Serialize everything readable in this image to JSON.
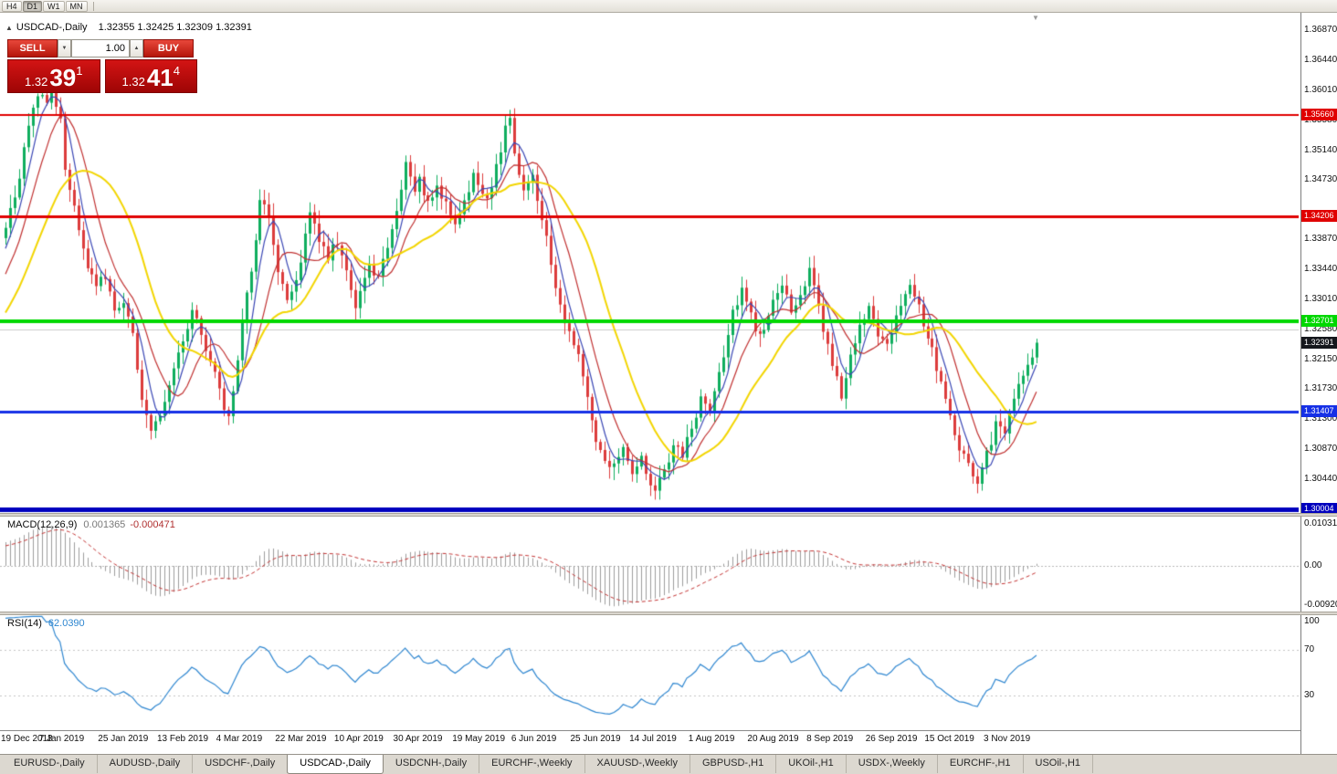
{
  "icons": {
    "collapse_panel": "▲",
    "shift_marker": "▼",
    "spin_down": "▼",
    "spin_up": "▲"
  },
  "toolbar": {
    "timeframes": [
      {
        "label": "H4",
        "active": false
      },
      {
        "label": "D1",
        "active": true
      },
      {
        "label": "W1",
        "active": false
      },
      {
        "label": "MN",
        "active": false
      }
    ]
  },
  "chart_header": {
    "symbol_title": "USDCAD-,Daily",
    "ohlc_text": "1.32355 1.32425 1.32309 1.32391"
  },
  "trade_panel": {
    "sell_label": "SELL",
    "buy_label": "BUY",
    "volume": "1.00",
    "sell_price": {
      "base": "1.32",
      "pips": "39",
      "pt": "1"
    },
    "buy_price": {
      "base": "1.32",
      "pips": "41",
      "pt": "4"
    }
  },
  "chart_data": {
    "type": "candlestick",
    "symbol": "USDCAD-",
    "timeframe": "Daily",
    "title": "USDCAD-,Daily",
    "ohlc_readout": {
      "open": 1.32355,
      "high": 1.32425,
      "low": 1.32309,
      "close": 1.32391
    },
    "price_ticks": [
      "1.36870",
      "1.36440",
      "1.36010",
      "1.35580",
      "1.35140",
      "1.34730",
      "1.33870",
      "1.33440",
      "1.33010",
      "1.32580",
      "1.32150",
      "1.31730",
      "1.31300",
      "1.30870",
      "1.30440"
    ],
    "x_labels": [
      "19 Dec 2018",
      "7 Jan 2019",
      "25 Jan 2019",
      "13 Feb 2019",
      "4 Mar 2019",
      "22 Mar 2019",
      "10 Apr 2019",
      "30 Apr 2019",
      "19 May 2019",
      "6 Jun 2019",
      "25 Jun 2019",
      "14 Jul 2019",
      "1 Aug 2019",
      "20 Aug 2019",
      "8 Sep 2019",
      "26 Sep 2019",
      "15 Oct 2019",
      "3 Nov 2019"
    ],
    "candles_per_label": 13,
    "hlines": [
      {
        "price": 1.3566,
        "label": "1.35660",
        "color": "#e00000",
        "width": 2
      },
      {
        "price": 1.34206,
        "label": "1.34206",
        "color": "#e00000",
        "width": 3
      },
      {
        "price": 1.32701,
        "label": "1.32701",
        "color": "#00d800",
        "width": 4
      },
      {
        "price": 1.31407,
        "label": "1.31407",
        "color": "#1630e6",
        "width": 3
      },
      {
        "price": 1.30004,
        "label": "1.30004",
        "color": "#0000be",
        "width": 5
      }
    ],
    "current_price": {
      "value": 1.32391,
      "label": "1.32391",
      "color": "#15171c"
    },
    "gridline_price": 1.3258,
    "candle_colors": {
      "up": "#0fae5e",
      "down": "#dc3c3c"
    },
    "moving_averages": [
      {
        "period": 5,
        "color": "#3946b4",
        "width": 1.2
      },
      {
        "period": 10,
        "color": "#c03030",
        "width": 1.2
      },
      {
        "period": 21,
        "color": "#f2d500",
        "width": 2
      }
    ],
    "prehistory": [
      [
        -40,
        1.3085
      ],
      [
        -32,
        1.3125
      ],
      [
        -24,
        1.3165
      ],
      [
        -16,
        1.322
      ],
      [
        -10,
        1.328
      ],
      [
        -6,
        1.331
      ],
      [
        -1,
        1.339
      ]
    ],
    "waypoints": [
      [
        0,
        1.3405
      ],
      [
        2,
        1.3445
      ],
      [
        4,
        1.3515
      ],
      [
        6,
        1.357
      ],
      [
        8,
        1.36
      ],
      [
        9,
        1.3575
      ],
      [
        10,
        1.3608
      ],
      [
        12,
        1.3555
      ],
      [
        13,
        1.349
      ],
      [
        14,
        1.3455
      ],
      [
        16,
        1.3405
      ],
      [
        18,
        1.335
      ],
      [
        20,
        1.332
      ],
      [
        22,
        1.3335
      ],
      [
        24,
        1.329
      ],
      [
        26,
        1.33
      ],
      [
        28,
        1.325
      ],
      [
        30,
        1.3155
      ],
      [
        32,
        1.3108
      ],
      [
        34,
        1.313
      ],
      [
        36,
        1.3175
      ],
      [
        38,
        1.322
      ],
      [
        39,
        1.324
      ],
      [
        41,
        1.329
      ],
      [
        43,
        1.325
      ],
      [
        45,
        1.3215
      ],
      [
        47,
        1.317
      ],
      [
        49,
        1.313
      ],
      [
        51,
        1.321
      ],
      [
        52,
        1.327
      ],
      [
        54,
        1.334
      ],
      [
        56,
        1.3445
      ],
      [
        58,
        1.342
      ],
      [
        60,
        1.3345
      ],
      [
        62,
        1.3295
      ],
      [
        64,
        1.333
      ],
      [
        65,
        1.336
      ],
      [
        67,
        1.342
      ],
      [
        69,
        1.339
      ],
      [
        71,
        1.336
      ],
      [
        73,
        1.3385
      ],
      [
        75,
        1.334
      ],
      [
        77,
        1.329
      ],
      [
        78,
        1.332
      ],
      [
        80,
        1.3355
      ],
      [
        82,
        1.333
      ],
      [
        84,
        1.338
      ],
      [
        86,
        1.342
      ],
      [
        88,
        1.3505
      ],
      [
        90,
        1.346
      ],
      [
        91,
        1.3475
      ],
      [
        93,
        1.344
      ],
      [
        95,
        1.3465
      ],
      [
        97,
        1.3435
      ],
      [
        99,
        1.3415
      ],
      [
        101,
        1.3445
      ],
      [
        103,
        1.3475
      ],
      [
        104,
        1.3465
      ],
      [
        106,
        1.3445
      ],
      [
        108,
        1.349
      ],
      [
        110,
        1.3545
      ],
      [
        111,
        1.356
      ],
      [
        112,
        1.351
      ],
      [
        114,
        1.3465
      ],
      [
        116,
        1.348
      ],
      [
        117,
        1.345
      ],
      [
        119,
        1.339
      ],
      [
        121,
        1.332
      ],
      [
        123,
        1.327
      ],
      [
        125,
        1.324
      ],
      [
        127,
        1.319
      ],
      [
        129,
        1.313
      ],
      [
        130,
        1.31
      ],
      [
        132,
        1.3075
      ],
      [
        134,
        1.306
      ],
      [
        136,
        1.309
      ],
      [
        138,
        1.3055
      ],
      [
        140,
        1.307
      ],
      [
        142,
        1.3035
      ],
      [
        143,
        1.302
      ],
      [
        145,
        1.3055
      ],
      [
        147,
        1.3095
      ],
      [
        149,
        1.3075
      ],
      [
        151,
        1.312
      ],
      [
        153,
        1.3155
      ],
      [
        155,
        1.314
      ],
      [
        156,
        1.3165
      ],
      [
        158,
        1.322
      ],
      [
        160,
        1.328
      ],
      [
        162,
        1.332
      ],
      [
        164,
        1.3275
      ],
      [
        166,
        1.3245
      ],
      [
        168,
        1.3275
      ],
      [
        169,
        1.33
      ],
      [
        171,
        1.332
      ],
      [
        173,
        1.3285
      ],
      [
        175,
        1.331
      ],
      [
        177,
        1.334
      ],
      [
        179,
        1.329
      ],
      [
        181,
        1.3235
      ],
      [
        182,
        1.321
      ],
      [
        184,
        1.3165
      ],
      [
        186,
        1.3215
      ],
      [
        188,
        1.326
      ],
      [
        190,
        1.329
      ],
      [
        192,
        1.3255
      ],
      [
        194,
        1.324
      ],
      [
        195,
        1.326
      ],
      [
        197,
        1.329
      ],
      [
        199,
        1.332
      ],
      [
        201,
        1.329
      ],
      [
        203,
        1.325
      ],
      [
        205,
        1.3205
      ],
      [
        207,
        1.3165
      ],
      [
        208,
        1.313
      ],
      [
        210,
        1.309
      ],
      [
        212,
        1.306
      ],
      [
        214,
        1.3042
      ],
      [
        216,
        1.308
      ],
      [
        218,
        1.312
      ],
      [
        220,
        1.3105
      ],
      [
        221,
        1.314
      ],
      [
        223,
        1.3175
      ],
      [
        225,
        1.3205
      ],
      [
        226,
        1.3222
      ],
      [
        227,
        1.3239
      ]
    ],
    "macd": {
      "name": "MACD(12,26,9)",
      "value_main": "0.001365",
      "value_signal": "-0.000471",
      "scale_top": "0.010311",
      "scale_zero": "0.00",
      "scale_bottom": "-0.009203",
      "fast": 12,
      "slow": 26,
      "signal": 9,
      "hist_color": "#9c9c9c",
      "signal_color": "#c23232"
    },
    "rsi": {
      "name": "RSI(14)",
      "value": "62.0390",
      "period": 14,
      "levels": [
        70,
        30
      ],
      "scale_labels": [
        "100",
        "70",
        "30"
      ],
      "color": "#2e86d0"
    }
  },
  "tabs": [
    {
      "label": "EURUSD-,Daily",
      "active": false
    },
    {
      "label": "AUDUSD-,Daily",
      "active": false
    },
    {
      "label": "USDCHF-,Daily",
      "active": false
    },
    {
      "label": "USDCAD-,Daily",
      "active": true
    },
    {
      "label": "USDCNH-,Daily",
      "active": false
    },
    {
      "label": "EURCHF-,Weekly",
      "active": false
    },
    {
      "label": "XAUUSD-,Weekly",
      "active": false
    },
    {
      "label": "GBPUSD-,H1",
      "active": false
    },
    {
      "label": "UKOil-,H1",
      "active": false
    },
    {
      "label": "USDX-,Weekly",
      "active": false
    },
    {
      "label": "EURCHF-,H1",
      "active": false
    },
    {
      "label": "USOil-,H1",
      "active": false
    }
  ]
}
